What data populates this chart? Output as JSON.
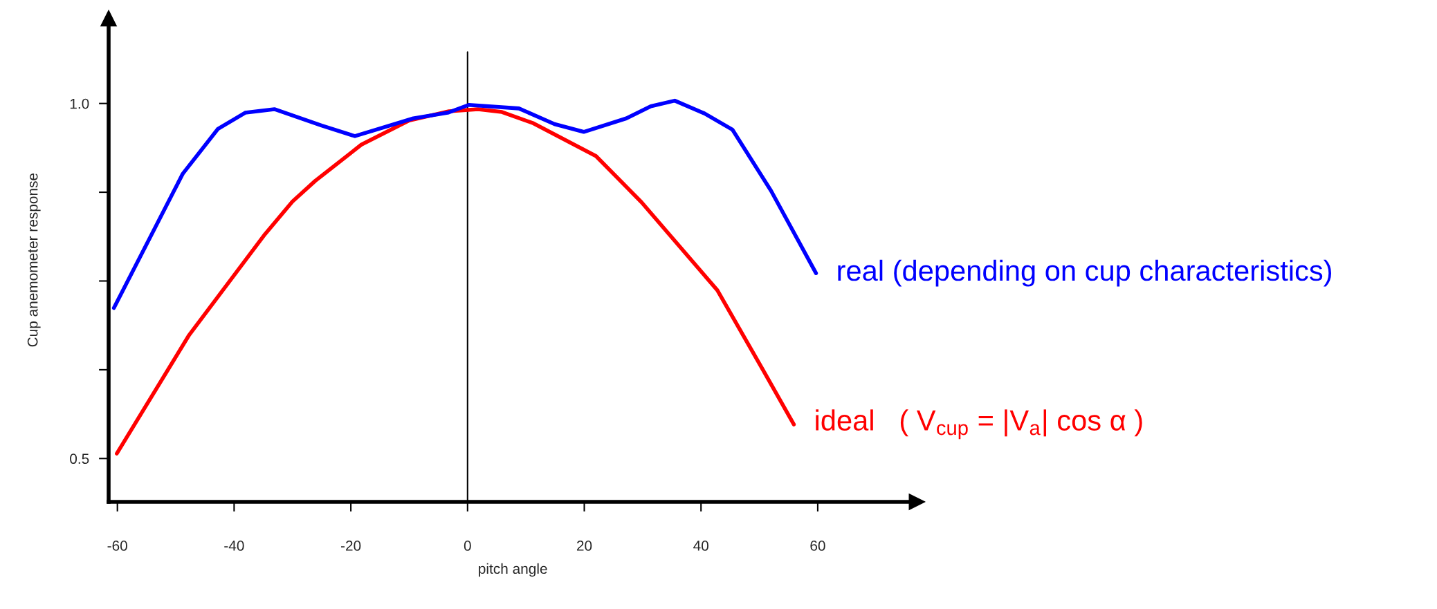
{
  "chart_data": {
    "type": "line",
    "xlabel": "pitch angle",
    "ylabel": "Cup anemometer response",
    "xlim": [
      -61.5,
      77
    ],
    "xticks": [
      -60,
      -40,
      -20,
      0,
      20,
      40,
      60
    ],
    "ylim": [
      0.439,
      1.12
    ],
    "yticks": [
      0.5,
      {
        "value": 0.625,
        "label": null
      },
      {
        "value": 0.75,
        "label": null
      },
      {
        "value": 0.875,
        "label": null
      },
      {
        "value": 1.0,
        "label": "1.0"
      }
    ],
    "grid": false,
    "legend": false,
    "marker": "none",
    "line_style": "solid",
    "ref_lines": [
      {
        "axis": "x",
        "value": 0,
        "color": "#000000"
      }
    ],
    "series": [
      {
        "name": "real (depending on cup characteristics)",
        "color": "#0000ff",
        "x": [
          -60.6,
          -48.8,
          -42.8,
          -38.1,
          -33.1,
          -25.0,
          -19.3,
          -9.3,
          -3.4,
          0.2,
          8.8,
          14.9,
          19.9,
          27.2,
          31.4,
          35.5,
          40.6,
          45.4,
          52.0,
          59.7
        ],
        "values": [
          0.712,
          0.901,
          0.964,
          0.987,
          0.992,
          0.969,
          0.954,
          0.979,
          0.987,
          0.998,
          0.993,
          0.971,
          0.96,
          0.979,
          0.996,
          1.004,
          0.986,
          0.963,
          0.877,
          0.761
        ]
      },
      {
        "name": "ideal   ( V$_{cup}$ = |V$_{a}$| cos α )",
        "color": "#ff0000",
        "x": [
          -60.1,
          -47.7,
          -34.7,
          -30.0,
          -26.1,
          -18.2,
          -10.0,
          -3.2,
          1.8,
          5.9,
          11.3,
          22.0,
          29.8,
          42.8,
          50.6,
          55.9
        ],
        "values": [
          0.507,
          0.674,
          0.816,
          0.862,
          0.891,
          0.942,
          0.976,
          0.989,
          0.992,
          0.988,
          0.972,
          0.926,
          0.861,
          0.737,
          0.625,
          0.548
        ]
      }
    ]
  }
}
